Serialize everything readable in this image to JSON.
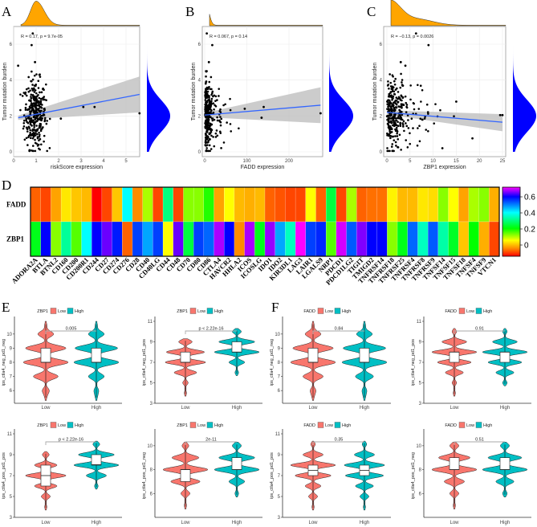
{
  "colors": {
    "scatter_point": "#000000",
    "reg_line": "#3366ff",
    "ci_band": "#bfbfbf",
    "top_density": "#ffa500",
    "right_density": "#0000ff",
    "low": "#f8766d",
    "high": "#00bfc4"
  },
  "panel_labels": {
    "A": "A",
    "B": "B",
    "C": "C",
    "D": "D",
    "E": "E",
    "F": "F"
  },
  "chart_data": [
    {
      "type": "scatter",
      "panel": "A",
      "xlabel": "riskScore expression",
      "ylabel": "Tumor mutation burden",
      "annotation": "R = 0.17, p = 9.7e-05",
      "xlim": [
        0,
        5.7
      ],
      "ylim": [
        -0.1,
        6.9
      ],
      "xticks": [
        0,
        1,
        2,
        3,
        4,
        5
      ],
      "yticks": [
        0,
        2,
        4,
        6
      ],
      "regression": {
        "x": [
          0.2,
          5.6
        ],
        "y": [
          1.9,
          3.2
        ],
        "ci_end": [
          2.2,
          4.2
        ]
      },
      "outliers": [
        [
          0.85,
          6.6
        ],
        [
          0.8,
          5.95
        ],
        [
          0.95,
          5.0
        ],
        [
          0.2,
          4.8
        ],
        [
          3.1,
          2.5
        ],
        [
          3.6,
          2.5
        ],
        [
          5.6,
          2.15
        ],
        [
          2.1,
          1.85
        ]
      ],
      "bulk": {
        "x_center": 0.95,
        "x_spread": 0.3,
        "y_center": 2.1,
        "y_spread": 0.95,
        "n": 320
      }
    },
    {
      "type": "scatter",
      "panel": "B",
      "xlabel": "FADD expression",
      "ylabel": "Tumor mutation burden",
      "annotation": "R = 0.067, p = 0.14",
      "xlim": [
        -3,
        280
      ],
      "ylim": [
        -0.1,
        6.9
      ],
      "xticks": [
        0,
        100,
        200
      ],
      "yticks": [
        0,
        2,
        4,
        6
      ],
      "regression": {
        "x": [
          0,
          275
        ],
        "y": [
          2.05,
          2.6
        ],
        "ci_end": [
          1.6,
          3.6
        ]
      },
      "outliers": [
        [
          5,
          6.6
        ],
        [
          18,
          5.95
        ],
        [
          10,
          5.0
        ],
        [
          95,
          2.4
        ],
        [
          135,
          1.9
        ],
        [
          140,
          2.5
        ],
        [
          275,
          2.15
        ]
      ],
      "bulk": {
        "x_center": 8,
        "x_spread": 18,
        "y_center": 2.1,
        "y_spread": 0.95,
        "n": 320
      }
    },
    {
      "type": "scatter",
      "panel": "C",
      "xlabel": "ZBP1 expression",
      "ylabel": "Tumor mutation burden",
      "annotation": "R = −0.13, p = 0.0026",
      "xlim": [
        -0.3,
        25.5
      ],
      "ylim": [
        -0.1,
        6.9
      ],
      "xticks": [
        0,
        5,
        10,
        15,
        20,
        25
      ],
      "yticks": [
        0,
        2,
        4,
        6
      ],
      "regression": {
        "x": [
          0,
          25
        ],
        "y": [
          2.2,
          1.65
        ],
        "ci_end": [
          1.15,
          2.1
        ]
      },
      "outliers": [
        [
          6.3,
          6.6
        ],
        [
          9,
          5.95
        ],
        [
          3,
          5.0
        ],
        [
          4,
          4.8
        ],
        [
          18.5,
          0.75
        ],
        [
          24.5,
          2.05
        ],
        [
          25,
          2.05
        ],
        [
          15,
          2.8
        ],
        [
          12,
          0.2
        ]
      ],
      "bulk": {
        "x_center": 2,
        "x_spread": 4,
        "y_center": 2.1,
        "y_spread": 0.95,
        "n": 320
      }
    },
    {
      "type": "heatmap",
      "panel": "D",
      "rows": [
        "FADD",
        "ZBP1"
      ],
      "columns": [
        "ADORA2A",
        "BTLA",
        "BTNL2",
        "CD160",
        "CD200",
        "CD200R1",
        "CD244",
        "CD27",
        "CD274",
        "CD276",
        "CD28",
        "CD40",
        "CD40LG",
        "CD44",
        "CD48",
        "CD70",
        "CD80",
        "CD86",
        "CTLA4",
        "HAVCR2",
        "HHLA2",
        "ICOS",
        "ICOSLG",
        "IDO1",
        "IDO2",
        "KIR3DL1",
        "LAG3",
        "LAIR1",
        "LGALS9",
        "NRP1",
        "PDCD1",
        "PDCD1LG2",
        "TIGIT",
        "TMIGD2",
        "TNFRSF14",
        "TNFRSF18",
        "TNFRSF25",
        "TNFRSF4",
        "TNFRSF8",
        "TNFRSF9",
        "TNFSF14",
        "TNFSF15",
        "TNFSF18",
        "TNFSF4",
        "TNFSF9",
        "VTCN1"
      ],
      "values": [
        [
          -0.08,
          -0.1,
          -0.03,
          0.03,
          0,
          -0.01,
          -0.15,
          -0.1,
          0,
          0.4,
          -0.05,
          0.1,
          -0.1,
          0.3,
          -0.1,
          0.12,
          0.12,
          0.18,
          -0.03,
          0.05,
          -0.01,
          -0.02,
          -0.01,
          -0.08,
          -0.09,
          -0.1,
          -0.1,
          0.05,
          -0.08,
          0.25,
          -0.1,
          0.1,
          -0.08,
          -0.07,
          -0.07,
          0.04,
          -0.01,
          -0.01,
          0.03,
          0.02,
          0.12,
          0.05,
          -0.03,
          0.1,
          0.12,
          -0.02
        ],
        [
          0.22,
          0.6,
          0.12,
          0.32,
          0.15,
          0.4,
          0.6,
          0.65,
          0.58,
          -0.08,
          0.55,
          0.47,
          0.55,
          0.05,
          0.65,
          0.25,
          0.55,
          0.52,
          0.68,
          0.6,
          -0.05,
          0.68,
          0.22,
          0.67,
          0.47,
          0.35,
          0.72,
          0.55,
          0.57,
          0.15,
          0.7,
          0.53,
          0.66,
          0.6,
          0.6,
          0.12,
          0.22,
          0.52,
          0.35,
          0.53,
          0.33,
          0.23,
          0,
          0.2,
          -0.02,
          -0.1
        ]
      ],
      "colorbar": {
        "min": -0.14,
        "max": 0.72,
        "ticks": [
          "0",
          "0.2",
          "0.4",
          "0.6"
        ]
      }
    },
    {
      "type": "violin",
      "panels": [
        {
          "id": "E1",
          "group": "ZBP1",
          "ylabel": "ips_ctla4_neg_pd1_neg",
          "p": "0.005",
          "ylim": [
            5.1,
            10.9
          ],
          "yticks": [
            "6",
            "7",
            "8",
            "9",
            "10"
          ],
          "low": {
            "box": [
              8,
              8,
              9
            ],
            "levels": [
              5.6,
              6,
              7,
              8,
              9,
              10,
              10.6
            ],
            "w": [
              0.05,
              0.15,
              0.55,
              1,
              0.9,
              0.35,
              0.05
            ]
          },
          "high": {
            "box": [
              8,
              8,
              9
            ],
            "levels": [
              5.6,
              6,
              7,
              8,
              9,
              10,
              10.6
            ],
            "w": [
              0.05,
              0.1,
              0.35,
              1,
              0.95,
              0.35,
              0.05
            ]
          }
        },
        {
          "id": "E2",
          "group": "ZBP1",
          "ylabel": "ips_ctla4_neg_pd1_pos",
          "p": "p < 2.22e-16",
          "ylim": [
            3,
            11
          ],
          "yticks": [
            "3",
            "5",
            "7",
            "9",
            "11"
          ],
          "low": {
            "box": [
              7,
              7,
              8
            ],
            "levels": [
              4,
              5,
              6,
              7,
              8,
              9
            ],
            "w": [
              0.05,
              0.12,
              0.5,
              0.9,
              0.85,
              0.3
            ]
          },
          "high": {
            "box": [
              8,
              8,
              9
            ],
            "levels": [
              6,
              7,
              8,
              9,
              10
            ],
            "w": [
              0.08,
              0.35,
              1,
              0.8,
              0.2
            ]
          }
        },
        {
          "id": "F1",
          "group": "FADD",
          "ylabel": "ips_ctla4_neg_pd1_neg",
          "p": "0.84",
          "ylim": [
            5.1,
            10.9
          ],
          "yticks": [
            "6",
            "7",
            "8",
            "9",
            "10"
          ],
          "low": {
            "box": [
              8,
              8,
              9
            ],
            "levels": [
              5.6,
              6,
              7,
              8,
              9,
              10,
              10.6
            ],
            "w": [
              0.05,
              0.12,
              0.45,
              1,
              0.9,
              0.35,
              0.05
            ]
          },
          "high": {
            "box": [
              8,
              8,
              9
            ],
            "levels": [
              5.6,
              6,
              7,
              8,
              9,
              10,
              10.6
            ],
            "w": [
              0.05,
              0.1,
              0.4,
              1,
              0.95,
              0.35,
              0.05
            ]
          }
        },
        {
          "id": "F2",
          "group": "FADD",
          "ylabel": "ips_ctla4_neg_pd1_pos",
          "p": "0.91",
          "ylim": [
            3,
            11
          ],
          "yticks": [
            "3",
            "5",
            "7",
            "9",
            "11"
          ],
          "low": {
            "box": [
              7,
              8,
              8
            ],
            "levels": [
              4,
              5,
              6,
              7,
              8,
              9,
              10
            ],
            "w": [
              0.05,
              0.1,
              0.4,
              0.75,
              1,
              0.55,
              0.1
            ]
          },
          "high": {
            "box": [
              7,
              8,
              8
            ],
            "levels": [
              5,
              6,
              7,
              8,
              9,
              10
            ],
            "w": [
              0.1,
              0.4,
              0.75,
              1,
              0.55,
              0.1
            ]
          }
        },
        {
          "id": "E3",
          "group": "ZBP1",
          "ylabel": "ips_ctla4_pos_pd1_pos",
          "p": "p < 2.22e-16",
          "ylim": [
            3,
            11
          ],
          "yticks": [
            "3",
            "5",
            "7",
            "9",
            "11"
          ],
          "low": {
            "box": [
              6,
              7,
              8
            ],
            "levels": [
              4,
              5,
              6,
              7,
              8,
              9
            ],
            "w": [
              0.05,
              0.2,
              0.5,
              0.9,
              0.5,
              0.15
            ]
          },
          "high": {
            "box": [
              8,
              8.05,
              9
            ],
            "levels": [
              6,
              7,
              8,
              9,
              10
            ],
            "w": [
              0.08,
              0.45,
              1,
              0.8,
              0.15
            ]
          }
        },
        {
          "id": "E4",
          "group": "ZBP1",
          "ylabel": "ips_ctla4_pos_pd1_neg",
          "p": "2e-11",
          "ylim": [
            4,
            11
          ],
          "yticks": [
            "6",
            "8",
            "10"
          ],
          "low": {
            "box": [
              7,
              8,
              8
            ],
            "levels": [
              5,
              6,
              7,
              8,
              9,
              10
            ],
            "w": [
              0.05,
              0.2,
              0.65,
              1,
              0.6,
              0.15
            ]
          },
          "high": {
            "box": [
              8,
              8,
              9
            ],
            "levels": [
              6,
              7,
              8,
              9,
              10
            ],
            "w": [
              0.08,
              0.35,
              1,
              0.8,
              0.2
            ]
          }
        },
        {
          "id": "F3",
          "group": "FADD",
          "ylabel": "ips_ctla4_pos_pd1_pos",
          "p": "0.35",
          "ylim": [
            3,
            11
          ],
          "yticks": [
            "3",
            "5",
            "7",
            "9",
            "11"
          ],
          "low": {
            "box": [
              7,
              7.5,
              8
            ],
            "levels": [
              4,
              5,
              6,
              7,
              8,
              9,
              10
            ],
            "w": [
              0.05,
              0.2,
              0.35,
              0.8,
              1,
              0.45,
              0.1
            ]
          },
          "high": {
            "box": [
              7,
              7.5,
              8
            ],
            "levels": [
              4,
              5,
              6,
              7,
              8,
              9,
              10
            ],
            "w": [
              0.05,
              0.2,
              0.4,
              0.85,
              0.9,
              0.45,
              0.1
            ]
          }
        },
        {
          "id": "F4",
          "group": "FADD",
          "ylabel": "ips_ctla4_pos_pd1_neg",
          "p": "0.51",
          "ylim": [
            4,
            11
          ],
          "yticks": [
            "6",
            "8",
            "10"
          ],
          "low": {
            "box": [
              8,
              8,
              9
            ],
            "levels": [
              5,
              6,
              7,
              8,
              9,
              10
            ],
            "w": [
              0.05,
              0.2,
              0.45,
              1,
              0.7,
              0.2
            ]
          },
          "high": {
            "box": [
              8,
              8,
              9
            ],
            "levels": [
              6,
              7,
              8,
              9,
              10
            ],
            "w": [
              0.1,
              0.4,
              1,
              0.75,
              0.2
            ]
          }
        }
      ],
      "legend": {
        "low": "Low",
        "high": "High"
      },
      "categories": [
        "Low",
        "High"
      ]
    }
  ]
}
